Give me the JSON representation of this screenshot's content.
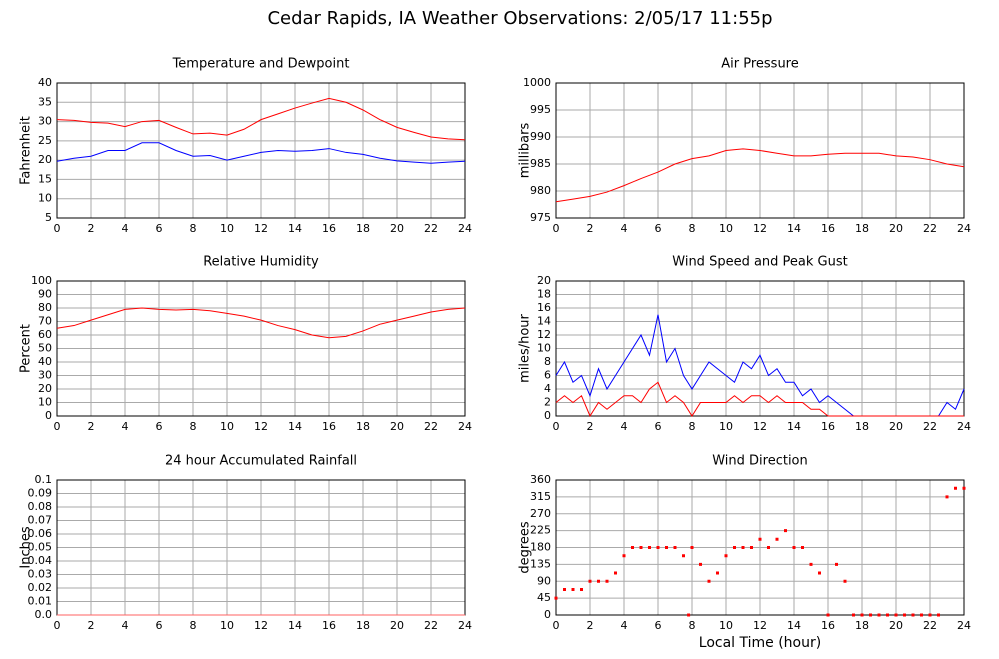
{
  "title": "Cedar Rapids, IA Weather Observations: 2/05/17 11:55p",
  "x_label": "Local Time (hour)",
  "chart_data": [
    {
      "type": "line",
      "title": "Temperature and Dewpoint",
      "y_label": "Fahrenheit",
      "x": [
        0,
        1,
        2,
        3,
        4,
        5,
        6,
        7,
        8,
        9,
        10,
        11,
        12,
        13,
        14,
        15,
        16,
        17,
        18,
        19,
        20,
        21,
        22,
        23,
        24
      ],
      "series": [
        {
          "color": "#ff0000",
          "values": [
            30.5,
            30.3,
            29.8,
            29.6,
            28.7,
            30,
            30.3,
            28.5,
            26.8,
            27,
            26.5,
            28,
            30.5,
            32,
            33.5,
            34.8,
            36,
            35,
            33,
            30.5,
            28.5,
            27.2,
            26,
            25.5,
            25.3
          ]
        },
        {
          "color": "#0000ff",
          "values": [
            19.7,
            20.5,
            21,
            22.5,
            22.5,
            24.5,
            24.5,
            22.5,
            21,
            21.2,
            20,
            21,
            22,
            22.5,
            22.3,
            22.5,
            23,
            22,
            21.5,
            20.5,
            19.8,
            19.5,
            19.2,
            19.5,
            19.7
          ]
        }
      ],
      "xlim": [
        0,
        24
      ],
      "xticks": [
        0,
        2,
        4,
        6,
        8,
        10,
        12,
        14,
        16,
        18,
        20,
        22,
        24
      ],
      "ylim": [
        5,
        40
      ],
      "yticks": [
        5,
        10,
        15,
        20,
        25,
        30,
        35,
        40
      ],
      "grid": true
    },
    {
      "type": "line",
      "title": "Air Pressure",
      "y_label": "millibars",
      "x": [
        0,
        1,
        2,
        3,
        4,
        5,
        6,
        7,
        8,
        9,
        10,
        11,
        12,
        13,
        14,
        15,
        16,
        17,
        18,
        19,
        20,
        21,
        22,
        23,
        24
      ],
      "series": [
        {
          "color": "#ff0000",
          "values": [
            978,
            978.5,
            979,
            979.8,
            981,
            982.3,
            983.5,
            985,
            986,
            986.5,
            987.5,
            987.8,
            987.5,
            987,
            986.5,
            986.5,
            986.8,
            987,
            987,
            987,
            986.5,
            986.3,
            985.8,
            985,
            984.5
          ]
        }
      ],
      "xlim": [
        0,
        24
      ],
      "xticks": [
        0,
        2,
        4,
        6,
        8,
        10,
        12,
        14,
        16,
        18,
        20,
        22,
        24
      ],
      "ylim": [
        975,
        1000
      ],
      "yticks": [
        975,
        980,
        985,
        990,
        995,
        1000
      ],
      "grid": true
    },
    {
      "type": "line",
      "title": "Relative Humidity",
      "y_label": "Percent",
      "x": [
        0,
        1,
        2,
        3,
        4,
        5,
        6,
        7,
        8,
        9,
        10,
        11,
        12,
        13,
        14,
        15,
        16,
        17,
        18,
        19,
        20,
        21,
        22,
        23,
        24
      ],
      "series": [
        {
          "color": "#ff0000",
          "values": [
            65,
            67,
            71,
            75,
            79,
            80,
            79,
            78.5,
            79,
            78,
            76,
            74,
            71,
            67,
            64,
            60,
            58,
            59,
            63,
            68,
            71,
            74,
            77,
            79,
            80
          ]
        }
      ],
      "xlim": [
        0,
        24
      ],
      "xticks": [
        0,
        2,
        4,
        6,
        8,
        10,
        12,
        14,
        16,
        18,
        20,
        22,
        24
      ],
      "ylim": [
        0,
        100
      ],
      "yticks": [
        0,
        10,
        20,
        30,
        40,
        50,
        60,
        70,
        80,
        90,
        100
      ],
      "grid": true
    },
    {
      "type": "line",
      "title": "Wind Speed and Peak Gust",
      "y_label": "miles/hour",
      "x": [
        0,
        0.5,
        1,
        1.5,
        2,
        2.5,
        3,
        3.5,
        4,
        4.5,
        5,
        5.5,
        6,
        6.5,
        7,
        7.5,
        8,
        8.5,
        9,
        9.5,
        10,
        10.5,
        11,
        11.5,
        12,
        12.5,
        13,
        13.5,
        14,
        14.5,
        15,
        15.5,
        16,
        16.5,
        17,
        17.5,
        18,
        18.5,
        19,
        19.5,
        20,
        20.5,
        21,
        21.5,
        22,
        22.5,
        23,
        23.5,
        24
      ],
      "series": [
        {
          "color": "#0000ff",
          "values": [
            6,
            8,
            5,
            6,
            3,
            7,
            4,
            6,
            8,
            10,
            12,
            9,
            15,
            8,
            10,
            6,
            4,
            6,
            8,
            7,
            6,
            5,
            8,
            7,
            9,
            6,
            7,
            5,
            5,
            3,
            4,
            2,
            3,
            2,
            1,
            0,
            0,
            0,
            0,
            0,
            0,
            0,
            0,
            0,
            0,
            0,
            2,
            1,
            4
          ]
        },
        {
          "color": "#ff0000",
          "values": [
            2,
            3,
            2,
            3,
            0,
            2,
            1,
            2,
            3,
            3,
            2,
            4,
            5,
            2,
            3,
            2,
            0,
            2,
            2,
            2,
            2,
            3,
            2,
            3,
            3,
            2,
            3,
            2,
            2,
            2,
            1,
            1,
            0,
            0,
            0,
            0,
            0,
            0,
            0,
            0,
            0,
            0,
            0,
            0,
            0,
            0,
            0,
            0,
            0
          ]
        }
      ],
      "xlim": [
        0,
        24
      ],
      "xticks": [
        0,
        2,
        4,
        6,
        8,
        10,
        12,
        14,
        16,
        18,
        20,
        22,
        24
      ],
      "ylim": [
        0,
        20
      ],
      "yticks": [
        0,
        2,
        4,
        6,
        8,
        10,
        12,
        14,
        16,
        18,
        20
      ],
      "grid": true
    },
    {
      "type": "line",
      "title": "24 hour Accumulated Rainfall",
      "y_label": "Inches",
      "x": [
        0,
        24
      ],
      "series": [
        {
          "color": "#ff6060",
          "values": [
            0,
            0
          ]
        }
      ],
      "xlim": [
        0,
        24
      ],
      "xticks": [
        0,
        2,
        4,
        6,
        8,
        10,
        12,
        14,
        16,
        18,
        20,
        22,
        24
      ],
      "ylim": [
        0,
        0.1
      ],
      "yticks": [
        {
          "value": 0,
          "label": "0.0"
        },
        0.01,
        0.02,
        0.03,
        0.04,
        0.05,
        0.06,
        0.07,
        0.08,
        0.09,
        0.1
      ],
      "grid": true
    },
    {
      "type": "scatter",
      "title": "Wind Direction",
      "y_label": "degrees",
      "x": [
        0,
        0.5,
        1,
        1.5,
        2,
        2.5,
        3,
        3.5,
        4,
        4.5,
        5,
        5.5,
        6,
        6.5,
        7,
        7.5,
        7.8,
        8,
        8.5,
        9,
        9.5,
        10,
        10.5,
        11,
        11.5,
        12,
        12.5,
        13,
        13.5,
        14,
        14.5,
        15,
        15.5,
        16,
        16.5,
        17,
        17.5,
        18,
        18.5,
        19,
        19.5,
        20,
        20.5,
        21,
        21.5,
        22,
        22.5,
        23,
        23.5,
        24
      ],
      "series": [
        {
          "color": "#ff0000",
          "values": [
            45,
            68,
            68,
            68,
            90,
            90,
            90,
            112,
            158,
            180,
            180,
            180,
            180,
            180,
            180,
            158,
            0,
            180,
            135,
            90,
            112,
            158,
            180,
            180,
            180,
            202,
            180,
            202,
            225,
            180,
            180,
            135,
            112,
            0,
            135,
            90,
            0,
            0,
            0,
            0,
            0,
            0,
            0,
            0,
            0,
            0,
            0,
            315,
            338,
            338
          ]
        }
      ],
      "xlim": [
        0,
        24
      ],
      "xticks": [
        0,
        2,
        4,
        6,
        8,
        10,
        12,
        14,
        16,
        18,
        20,
        22,
        24
      ],
      "ylim": [
        0,
        360
      ],
      "yticks": [
        0,
        45,
        90,
        135,
        180,
        225,
        270,
        315,
        360
      ],
      "grid": true
    }
  ]
}
